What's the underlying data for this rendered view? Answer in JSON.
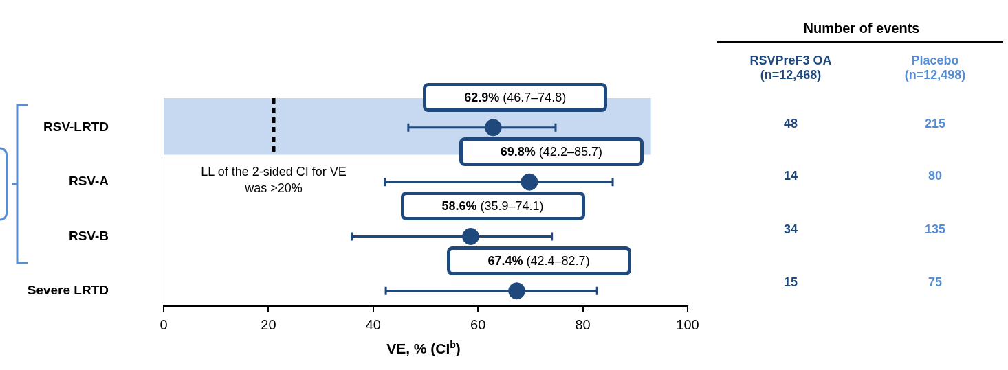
{
  "chart_data": [
    {
      "type": "scatter",
      "xlabel": "VE, % (CI$^{b}$)",
      "categories": [
        "RSV-LRTD",
        "RSV-A",
        "RSV-B",
        "Severe LRTD"
      ],
      "color": "#1f497d",
      "values": [
        62.9,
        69.8,
        58.6,
        67.4
      ],
      "errors": [
        [
          46.7,
          74.8
        ],
        [
          42.2,
          85.7
        ],
        [
          35.9,
          74.1
        ],
        [
          42.4,
          82.7
        ]
      ],
      "value_labels": [
        "62.9% (46.7–74.8)",
        "69.8% (42.2–85.7)",
        "58.6% (35.9–74.1)",
        "67.4% (42.4–82.7)"
      ],
      "orientation": "horizontal",
      "xlim": [
        0,
        100
      ],
      "xticks": [
        0,
        20,
        40,
        60,
        80,
        100
      ],
      "bands": [
        {
          "axis": "x",
          "from": 0,
          "to": 93,
          "color": "#c6d9f1"
        }
      ],
      "ref_lines": [
        {
          "axis": "x",
          "value": 21,
          "label": "LL of the 2-sided CI for VE was >20%",
          "color": "#000000",
          "line_style": "dashed"
        }
      ],
      "marker": "circle",
      "grid": false,
      "legend": false
    },
    {
      "type": "other",
      "title": "Number of events",
      "annotations": [
        "RSVPreF3 OA\n(n=12,468)",
        "Placebo\n(n=12,498)",
        "48",
        "215",
        "14",
        "80",
        "34",
        "135",
        "15",
        "75"
      ]
    }
  ]
}
